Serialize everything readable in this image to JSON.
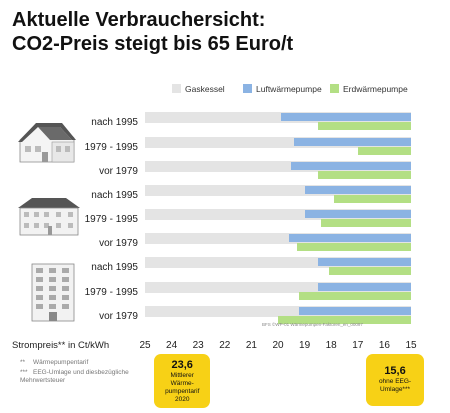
{
  "title_lines": [
    "Aktuelle Verbrauchersicht:",
    "CO2-Preis steigt bis 65 Euro/t"
  ],
  "x_axis_title": "Strompreis** in Ct/kWh",
  "credit": "BFS ©WP-01 Wärmepumpen-Faktoren_en_00097",
  "footnotes": [
    {
      "marker": "**",
      "text": "Wärmepumpentarif"
    },
    {
      "marker": "***",
      "text": "EEG-Umlage und diesbezügliche Mehrwertsteuer"
    }
  ],
  "callouts": [
    {
      "value": "23,6",
      "lines": [
        "Mittlerer",
        "Wärme-",
        "pumpentarif",
        "2020"
      ],
      "x": 23.6
    },
    {
      "value": "15,6",
      "lines": [
        "ohne EEG-",
        "Umlage***"
      ],
      "x": 15.6
    }
  ],
  "colors": {
    "gaskessel": "#e4e4e4",
    "luftwaermepumpe": "#8bb3e3",
    "erdwaermepumpe": "#b3df84",
    "callout": "#f7d116"
  },
  "chart_data": {
    "type": "bar",
    "orientation": "horizontal",
    "x_direction": "reversed",
    "xlim": [
      25,
      15
    ],
    "ticks": [
      25,
      24,
      23,
      22,
      21,
      20,
      19,
      18,
      17,
      16,
      15
    ],
    "legend": [
      "Gaskessel",
      "Luftwärmepumpe",
      "Erdwärmepumpe"
    ],
    "legend_position": "top-right",
    "groups": [
      {
        "icon": "single-family-house-icon",
        "name": "single-family-house-group",
        "rows": [
          {
            "label": "nach 1995",
            "luft": 19.9,
            "erd": 18.5
          },
          {
            "label": "1979 - 1995",
            "luft": 19.4,
            "erd": 17.0
          },
          {
            "label": "vor 1979",
            "luft": 19.5,
            "erd": 18.5
          }
        ]
      },
      {
        "icon": "apartment-house-icon",
        "name": "apartment-house-group",
        "rows": [
          {
            "label": "nach 1995",
            "luft": 19.0,
            "erd": 17.9
          },
          {
            "label": "1979 - 1995",
            "luft": 19.0,
            "erd": 18.4
          },
          {
            "label": "vor 1979",
            "luft": 19.6,
            "erd": 19.3
          }
        ]
      },
      {
        "icon": "high-rise-building-icon",
        "name": "high-rise-building-group",
        "rows": [
          {
            "label": "nach 1995",
            "luft": 18.5,
            "erd": 18.1
          },
          {
            "label": "1979 - 1995",
            "luft": 18.5,
            "erd": 19.2
          },
          {
            "label": "vor 1979",
            "luft": 19.2,
            "erd": 20.0
          }
        ]
      }
    ]
  }
}
